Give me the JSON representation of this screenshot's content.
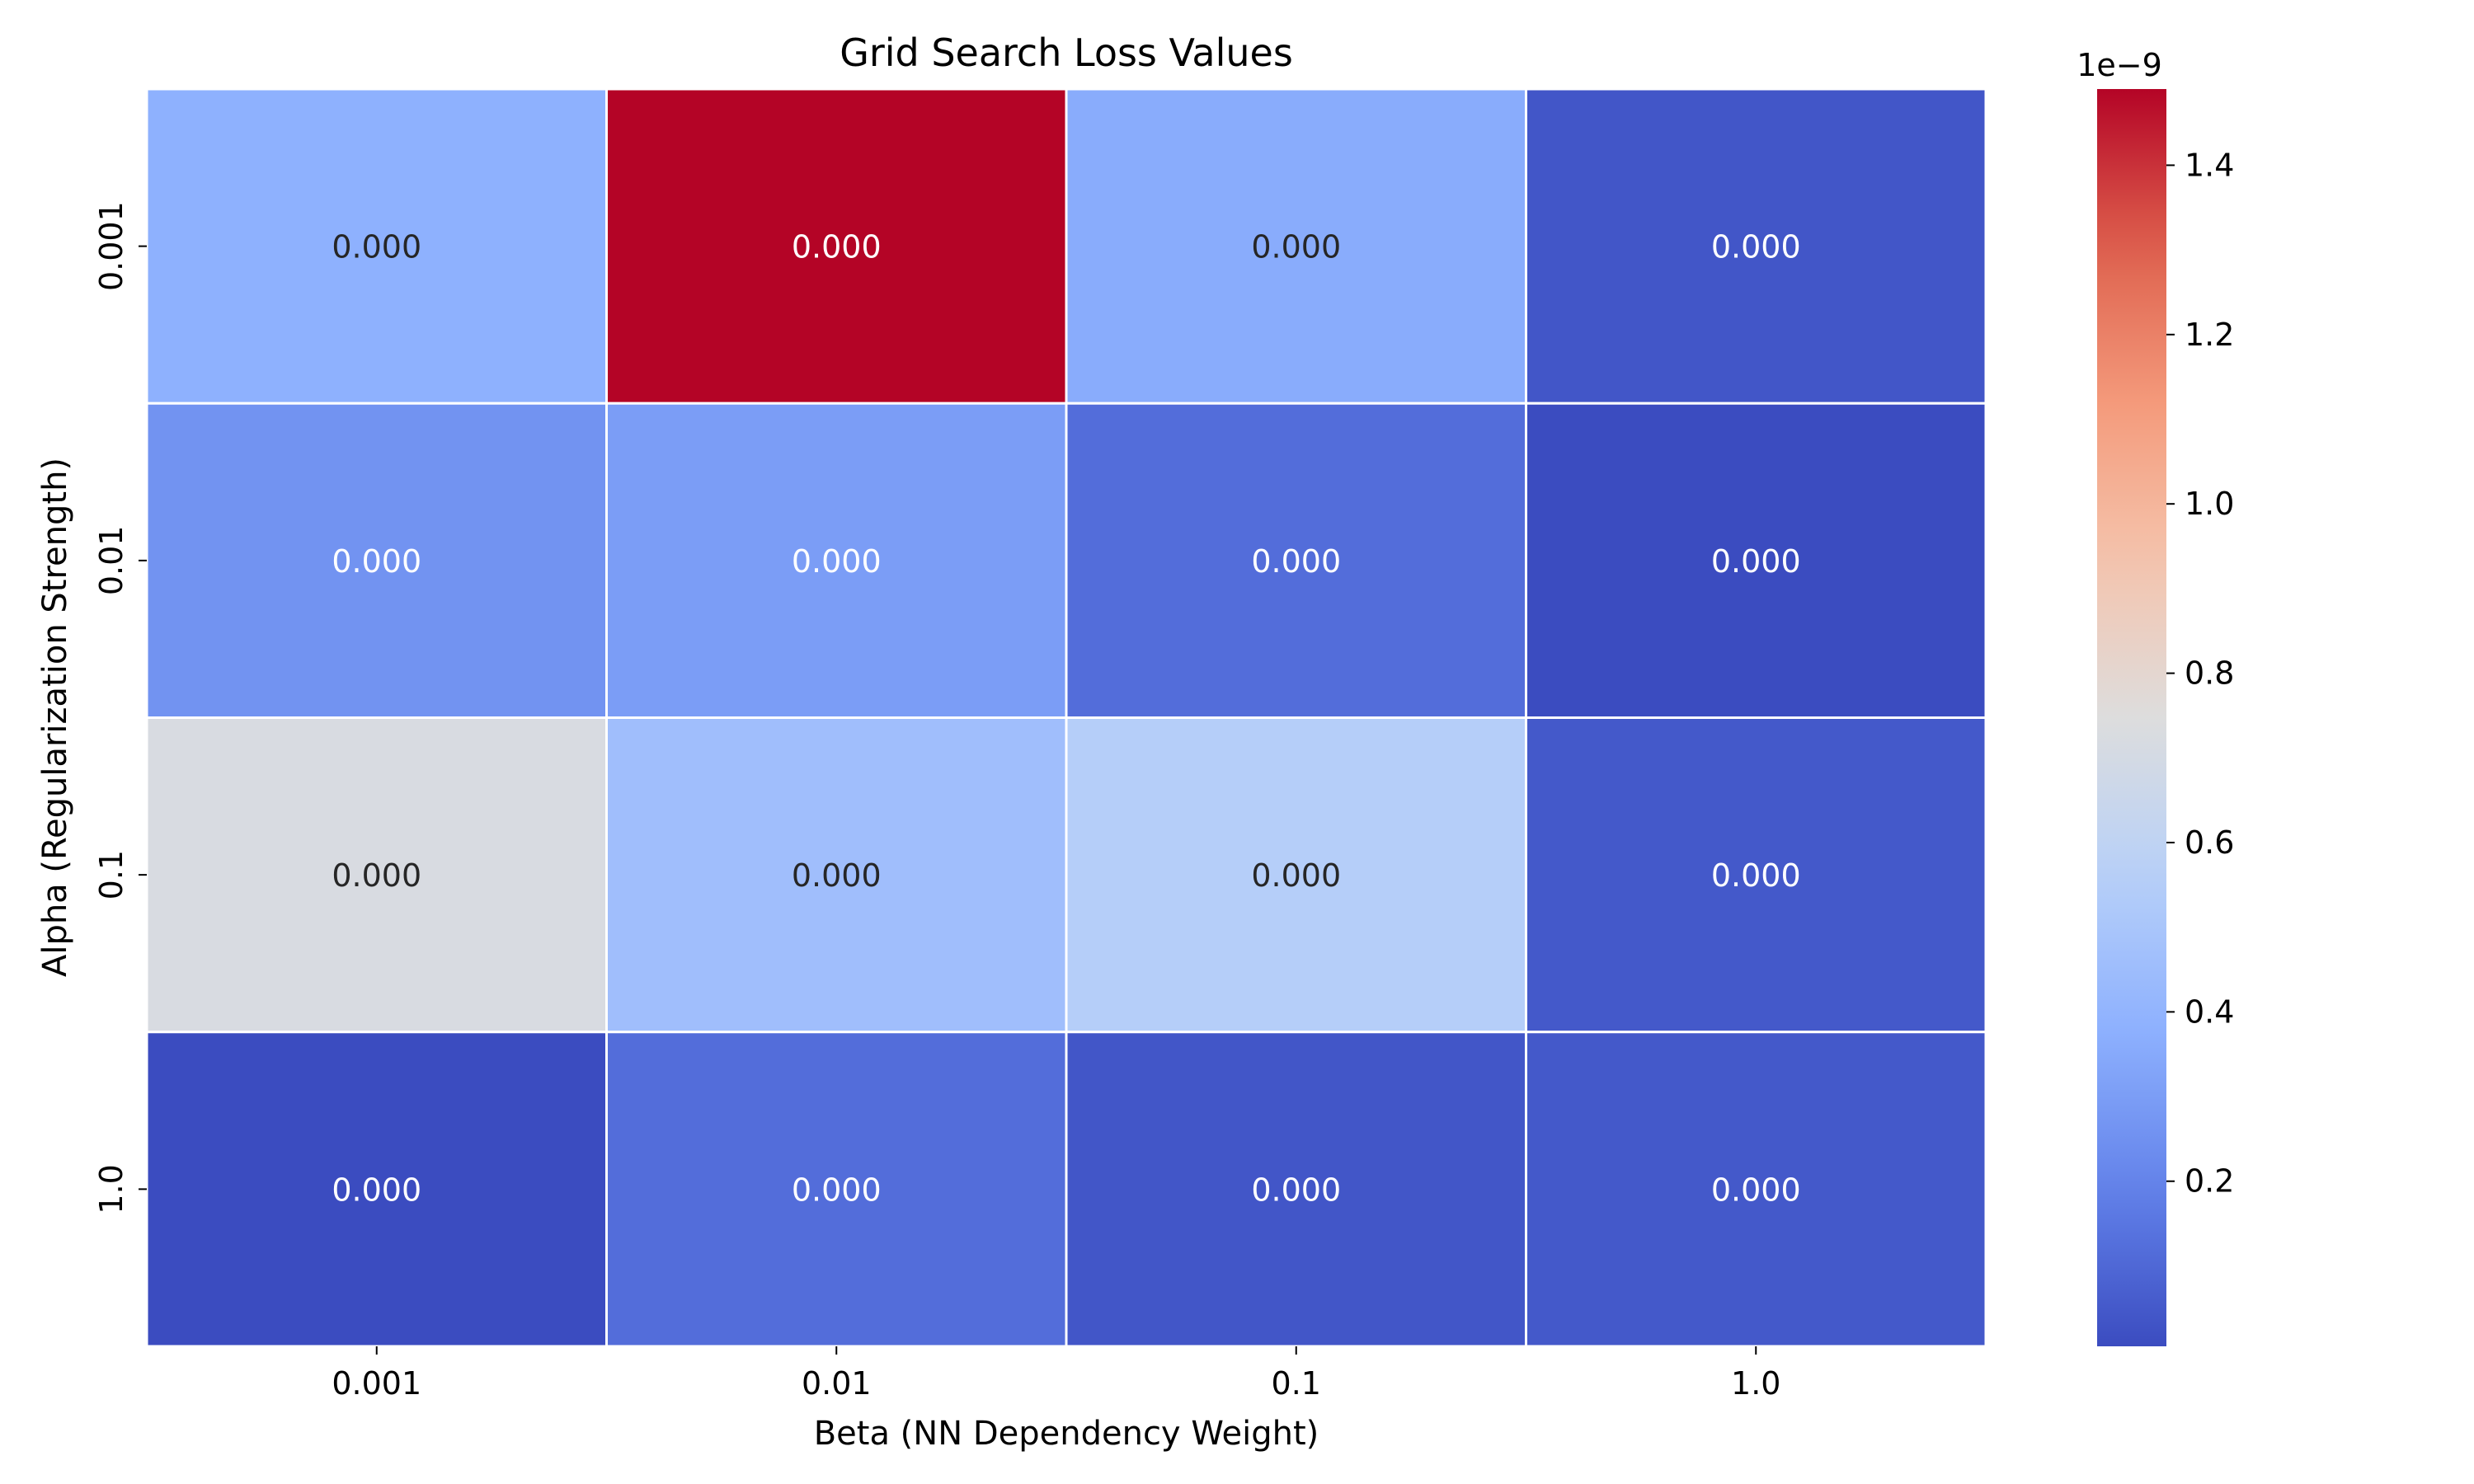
{
  "chart_data": {
    "type": "heatmap",
    "title": "Grid Search Loss Values",
    "xlabel": "Beta (NN Dependency Weight)",
    "ylabel": "Alpha (Regularization Strength)",
    "x_categories": [
      "0.001",
      "0.01",
      "0.1",
      "1.0"
    ],
    "y_categories": [
      "0.001",
      "0.01",
      "0.1",
      "1.0"
    ],
    "values": [
      [
        3.8e-10,
        1.49e-09,
        3.6e-10,
        4e-11
      ],
      [
        2.6e-10,
        3e-10,
        1.2e-10,
        5e-12
      ],
      [
        7.2e-10,
        4.6e-10,
        5.5e-10,
        5e-11
      ],
      [
        5e-12,
        1.2e-10,
        4e-11,
        5e-11
      ]
    ],
    "cell_labels": [
      [
        "0.000",
        "0.000",
        "0.000",
        "0.000"
      ],
      [
        "0.000",
        "0.000",
        "0.000",
        "0.000"
      ],
      [
        "0.000",
        "0.000",
        "0.000",
        "0.000"
      ],
      [
        "0.000",
        "0.000",
        "0.000",
        "0.000"
      ]
    ],
    "colormap": "coolwarm",
    "colorbar": {
      "range": [
        5e-12,
        1.49e-09
      ],
      "ticks": [
        2e-10,
        4e-10,
        6e-10,
        8e-10,
        1e-09,
        1.2e-09,
        1.4e-09
      ],
      "tick_labels": [
        "0.2",
        "0.4",
        "0.6",
        "0.8",
        "1.0",
        "1.2",
        "1.4"
      ],
      "offset_label": "1e−9"
    },
    "grid": false
  }
}
